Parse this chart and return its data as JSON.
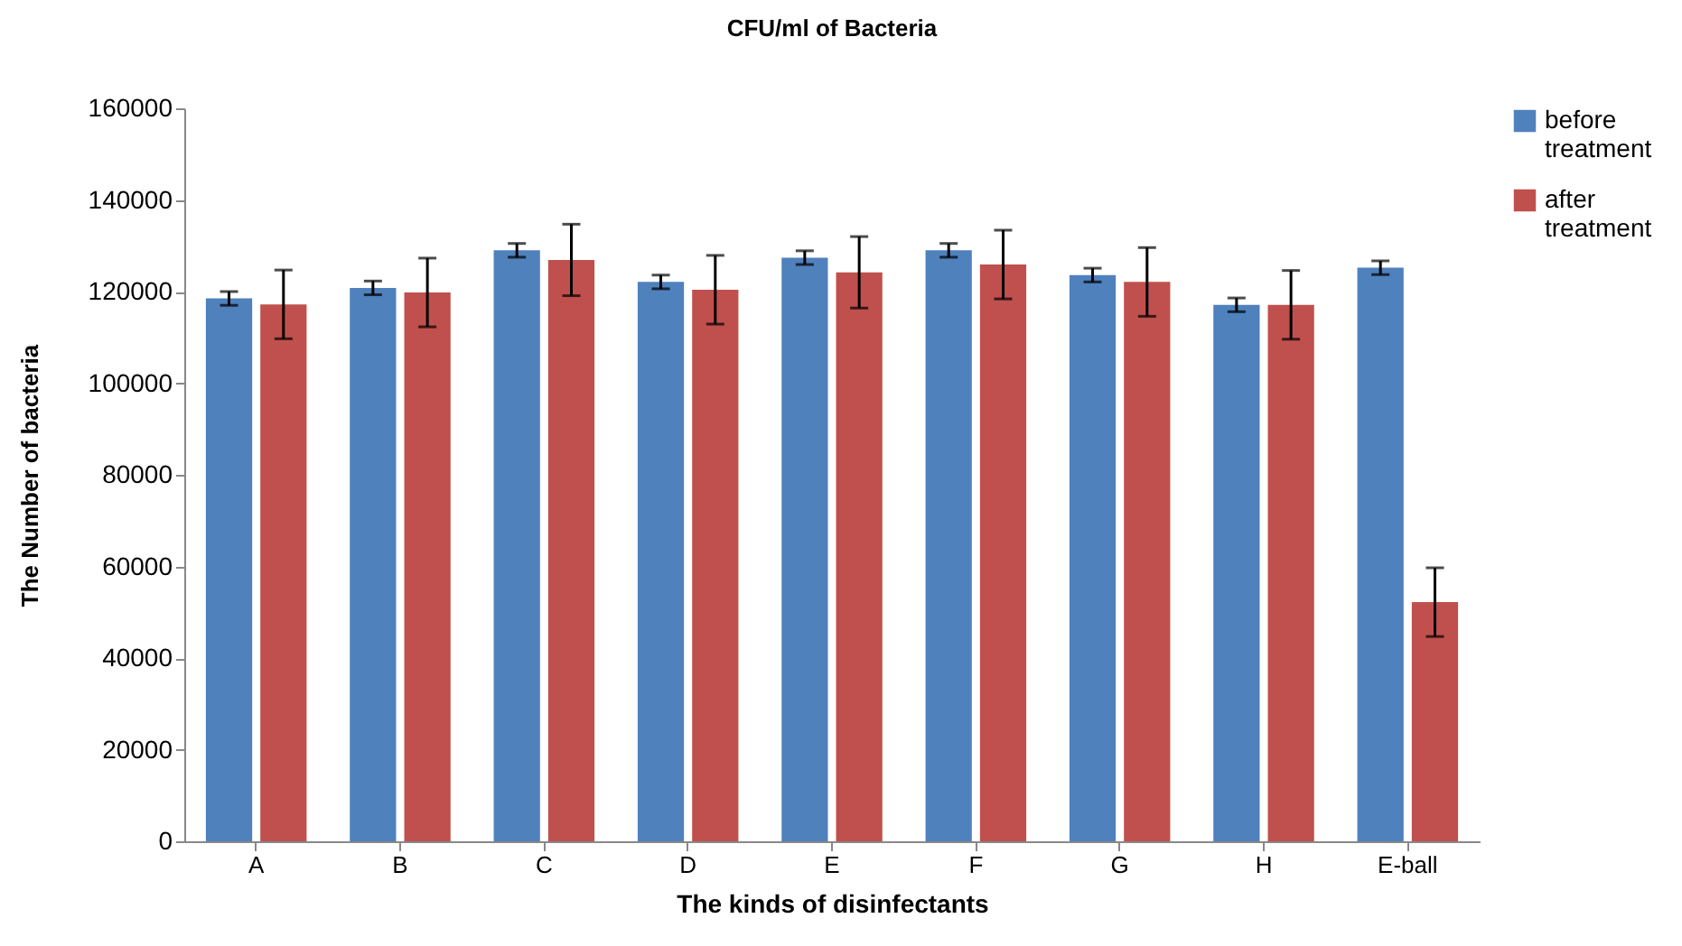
{
  "chart_data": {
    "type": "bar",
    "title": "CFU/ml of Bacteria",
    "xlabel": "The kinds  of  disinfectants",
    "ylabel": "The Number of bacteria",
    "categories": [
      "A",
      "B",
      "C",
      "D",
      "E",
      "F",
      "G",
      "H",
      "E-ball"
    ],
    "series": [
      {
        "name": "before treatment",
        "color": "#4f81bd",
        "values": [
          118500,
          120800,
          129000,
          122100,
          127400,
          129000,
          123600,
          117100,
          125200
        ],
        "errors": [
          1500,
          1500,
          1500,
          1500,
          1500,
          1500,
          1500,
          1500,
          1500
        ]
      },
      {
        "name": "after treatment",
        "color": "#c0504d",
        "values": [
          117200,
          119800,
          126900,
          120400,
          124200,
          125900,
          122100,
          117100,
          52200
        ],
        "errors": [
          7500,
          7500,
          7800,
          7500,
          7800,
          7500,
          7500,
          7500,
          7500
        ]
      }
    ],
    "ylim": [
      0,
      160000
    ],
    "yticks": [
      0,
      20000,
      40000,
      60000,
      80000,
      100000,
      120000,
      140000,
      160000
    ],
    "grid": false,
    "legend": "right"
  }
}
